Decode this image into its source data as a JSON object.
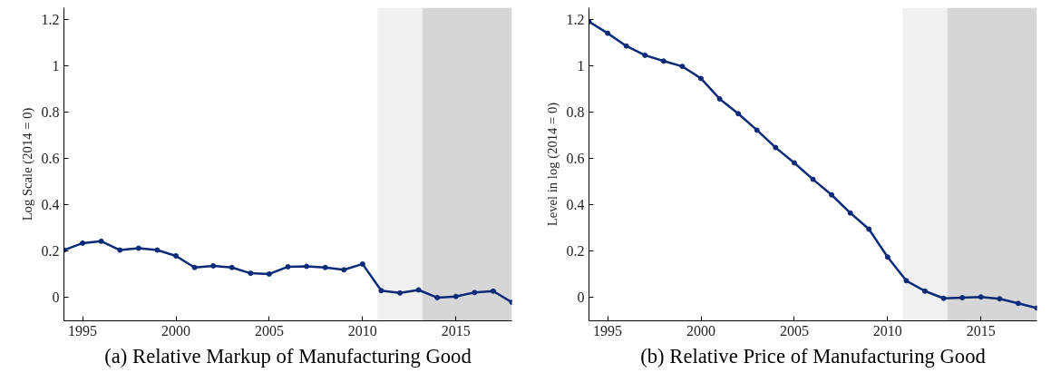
{
  "chart_data": [
    {
      "type": "line",
      "title": "(a) Relative Markup of Manufacturing Good",
      "ylabel": "Log Scale (2014 = 0)",
      "x": [
        1994,
        1995,
        1996,
        1997,
        1998,
        1999,
        2000,
        2001,
        2002,
        2003,
        2004,
        2005,
        2006,
        2007,
        2008,
        2009,
        2010,
        2011,
        2012,
        2013,
        2014,
        2015,
        2016,
        2017,
        2018
      ],
      "series": [
        {
          "color": "#0b2a78",
          "values": [
            0.205,
            0.235,
            0.243,
            0.205,
            0.213,
            0.205,
            0.18,
            0.13,
            0.137,
            0.13,
            0.105,
            0.102,
            0.133,
            0.135,
            0.13,
            0.12,
            0.145,
            0.03,
            0.02,
            0.033,
            0,
            0.005,
            0.022,
            0.028,
            -0.02
          ]
        }
      ],
      "xlim": [
        1994,
        2018
      ],
      "ylim": [
        -0.1,
        1.25
      ],
      "xticks": [
        1995,
        2000,
        2005,
        2010,
        2015
      ],
      "yticks": [
        0,
        0.2,
        0.4,
        0.6,
        0.8,
        1,
        1.2
      ],
      "bands": [
        {
          "axis": "x",
          "from": 2010.8,
          "to": 2013.2,
          "color": "#f0f0f0"
        },
        {
          "axis": "x",
          "from": 2013.2,
          "to": 2018,
          "color": "#d6d6d6"
        }
      ],
      "grid": false,
      "marker": "circle",
      "line_style": "solid"
    },
    {
      "type": "line",
      "title": "(b) Relative Price of Manufacturing Good",
      "ylabel": "Level in log (2014 = 0)",
      "x": [
        1994,
        1995,
        1996,
        1997,
        1998,
        1999,
        2000,
        2001,
        2002,
        2003,
        2004,
        2005,
        2006,
        2007,
        2008,
        2009,
        2010,
        2011,
        2012,
        2013,
        2014,
        2015,
        2016,
        2017,
        2018
      ],
      "series": [
        {
          "color": "#0b2a78",
          "values": [
            1.19,
            1.14,
            1.085,
            1.045,
            1.02,
            0.997,
            0.945,
            0.857,
            0.793,
            0.722,
            0.647,
            0.581,
            0.51,
            0.443,
            0.365,
            0.295,
            0.175,
            0.073,
            0.028,
            -0.003,
            0,
            0.003,
            -0.005,
            -0.025,
            -0.045
          ]
        }
      ],
      "xlim": [
        1994,
        2018
      ],
      "ylim": [
        -0.1,
        1.25
      ],
      "xticks": [
        1995,
        2000,
        2005,
        2010,
        2015
      ],
      "yticks": [
        0,
        0.2,
        0.4,
        0.6,
        0.8,
        1,
        1.2
      ],
      "bands": [
        {
          "axis": "x",
          "from": 2010.8,
          "to": 2013.2,
          "color": "#f0f0f0"
        },
        {
          "axis": "x",
          "from": 2013.2,
          "to": 2018,
          "color": "#d6d6d6"
        }
      ],
      "grid": false,
      "marker": "circle",
      "line_style": "solid"
    }
  ]
}
